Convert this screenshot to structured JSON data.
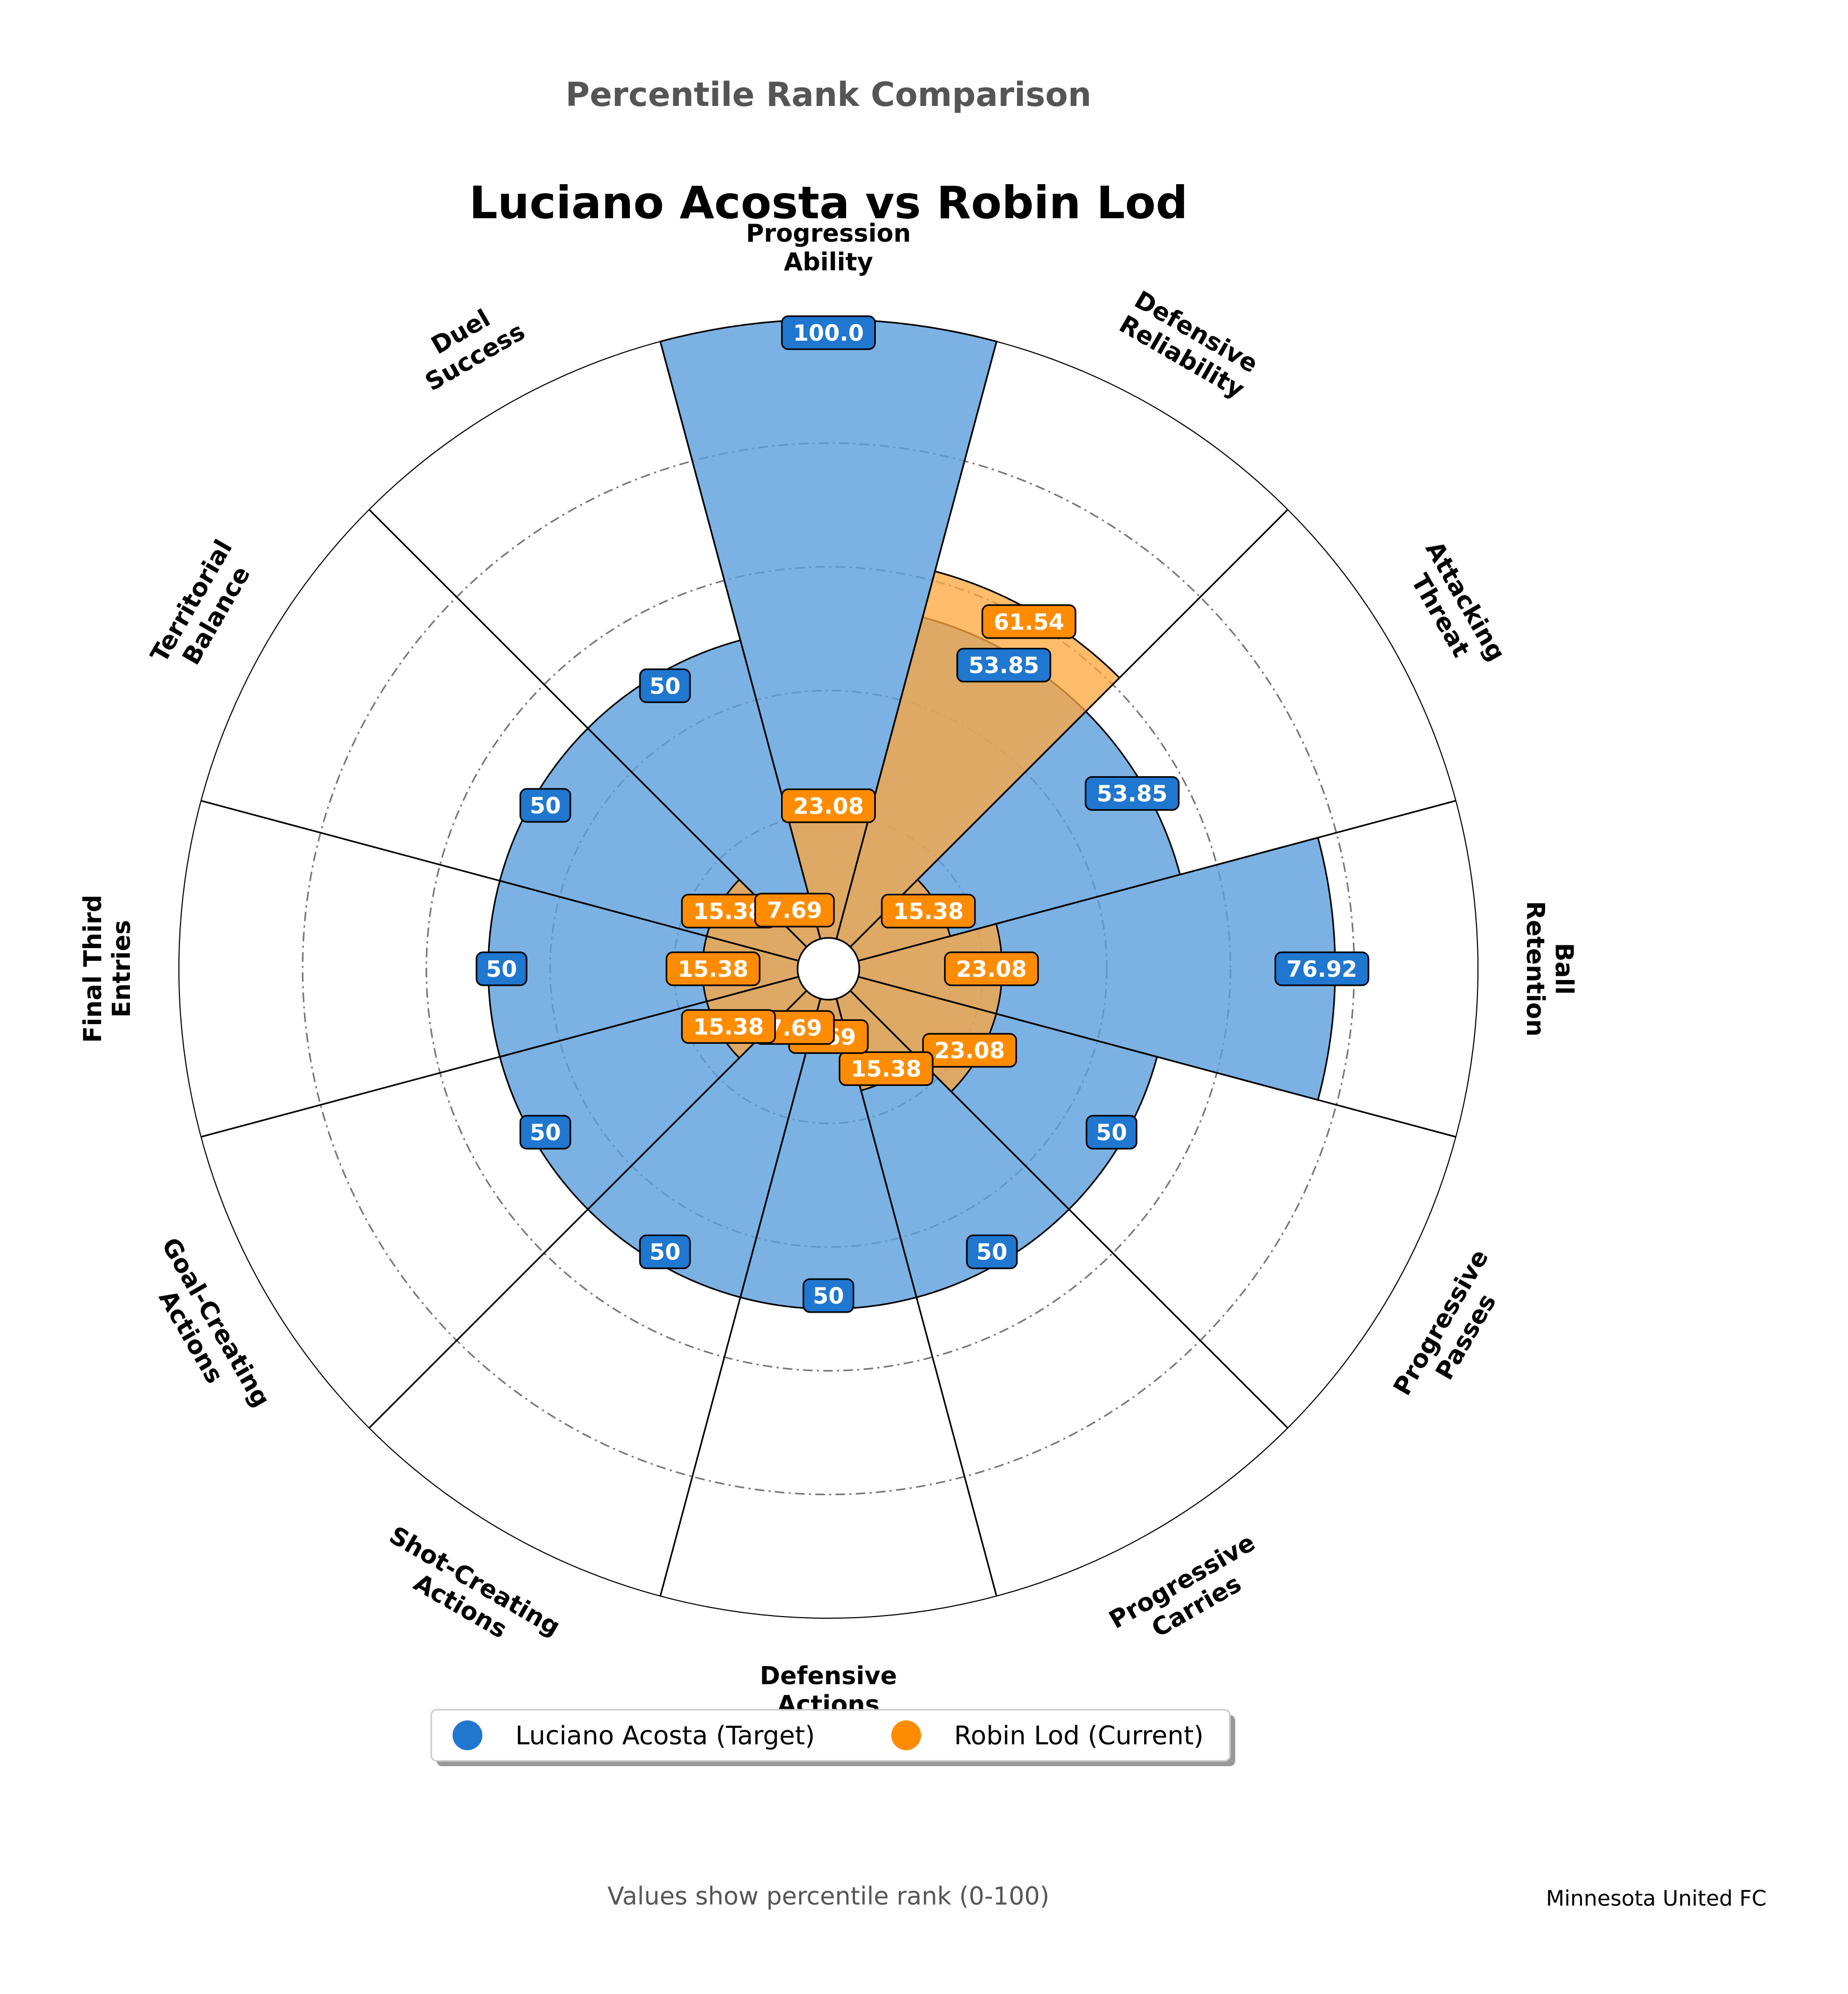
{
  "header": {
    "suptitle": "Percentile Rank Comparison",
    "title": "Luciano Acosta vs Robin Lod"
  },
  "chart_data": {
    "type": "polar-bar",
    "categories": [
      "Progression Ability",
      "Defensive Reliability",
      "Attacking Threat",
      "Ball Retention",
      "Progressive Passes",
      "Progressive Carries",
      "Defensive Actions",
      "Shot-Creating Actions",
      "Goal-Creating Actions",
      "Final Third Entries",
      "Territorial Balance",
      "Duel Success"
    ],
    "series": [
      {
        "name": "Luciano Acosta (Target)",
        "color": "#1f77d0",
        "fill": "#5b9fdc",
        "values": [
          100.0,
          53.85,
          53.85,
          76.92,
          50,
          50,
          50,
          50,
          50,
          50,
          50,
          50
        ],
        "labels": [
          "100.0",
          "53.85",
          "53.85",
          "76.92",
          "50",
          "50",
          "50",
          "50",
          "50",
          "50",
          "50",
          "50"
        ]
      },
      {
        "name": "Robin Lod (Current)",
        "color": "#ff8c00",
        "fill": "#ffa63a",
        "values": [
          23.08,
          61.54,
          15.38,
          23.08,
          23.08,
          15.38,
          7.69,
          7.69,
          15.38,
          15.38,
          15.38,
          7.69
        ],
        "labels": [
          "23.08",
          "61.54",
          "15.38",
          "23.08",
          "23.08",
          "15.38",
          "7.69",
          "7.69",
          "15.38",
          "15.38",
          "15.38",
          "7.69"
        ]
      }
    ],
    "rlim": [
      0,
      100
    ],
    "grid": true,
    "legend_position": "bottom-center"
  },
  "footer": {
    "note": "Values show percentile rank (0-100)",
    "team": "Minnesota United FC"
  }
}
